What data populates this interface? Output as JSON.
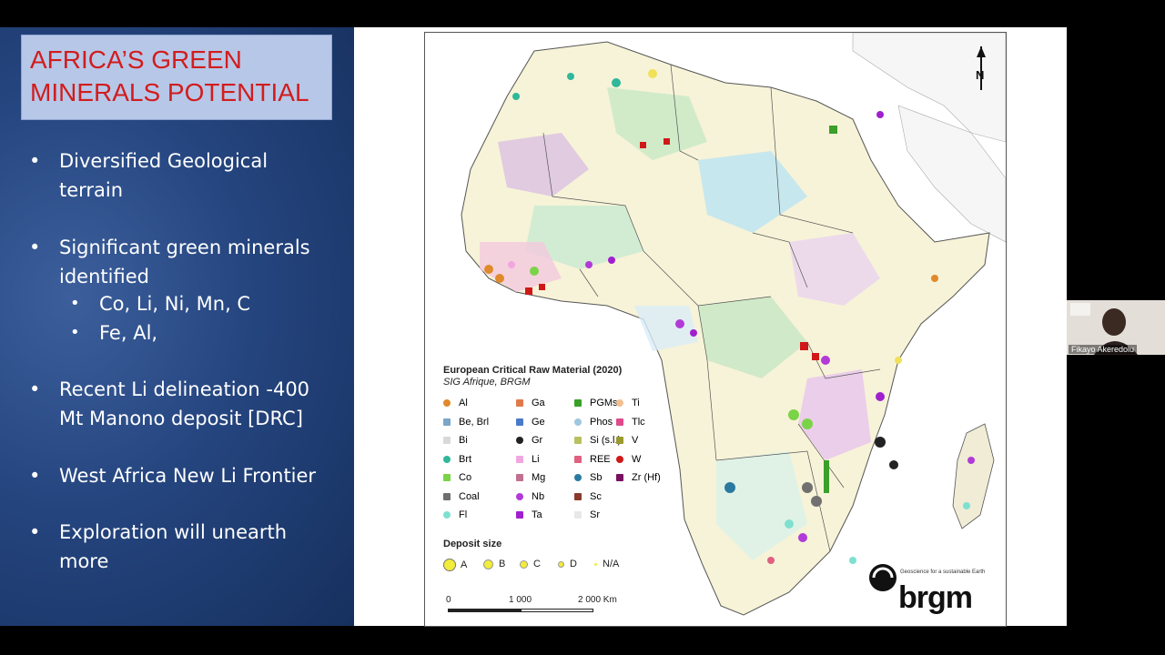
{
  "slide": {
    "title_line1": "AFRICA’S GREEN",
    "title_line2": "MINERALS POTENTIAL",
    "bullets": [
      {
        "line1": "Diversified Geological",
        "line2": "terrain"
      },
      {
        "line1": "Significant green minerals",
        "line2": "identified"
      },
      {
        "line1": "Recent Li delineation -400",
        "line2": "Mt Manono deposit [DRC]"
      },
      {
        "line1": "West Africa New Li Frontier",
        "line2": ""
      },
      {
        "line1": "Exploration will unearth",
        "line2": "more"
      }
    ],
    "sub_bullets": [
      "Co, Li, Ni, Mn, C",
      "Fe, Al,"
    ],
    "bullet_char": "•"
  },
  "map": {
    "legend_title": "European Critical Raw Material (2020)",
    "legend_subtitle": "SIG Afrique, BRGM",
    "legend_items": [
      {
        "label": "Al",
        "color": "#e08a2c"
      },
      {
        "label": "Be, Brl",
        "color": "#7aa6c9"
      },
      {
        "label": "Bi",
        "color": "#d8d8d8"
      },
      {
        "label": "Brt",
        "color": "#2fb89a"
      },
      {
        "label": "Co",
        "color": "#7bd348"
      },
      {
        "label": "Coal",
        "color": "#707070"
      },
      {
        "label": "Fl",
        "color": "#7ee0d0"
      },
      {
        "label": "Ga",
        "color": "#e07a4a"
      },
      {
        "label": "Ge",
        "color": "#4a7ac8"
      },
      {
        "label": "Gr",
        "color": "#222222"
      },
      {
        "label": "Li",
        "color": "#f2a6e0"
      },
      {
        "label": "Mg",
        "color": "#c07090"
      },
      {
        "label": "Nb",
        "color": "#b23ad8"
      },
      {
        "label": "Ta",
        "color": "#a020d0"
      },
      {
        "label": "PGMs",
        "color": "#3aa02a"
      },
      {
        "label": "Phos",
        "color": "#9ec8e0"
      },
      {
        "label": "Si (s.l.)",
        "color": "#b8c060"
      },
      {
        "label": "REE",
        "color": "#e06080"
      },
      {
        "label": "Sb",
        "color": "#2a7aa0"
      },
      {
        "label": "Sc",
        "color": "#8a3a2a"
      },
      {
        "label": "Sr",
        "color": "#e8e8e8"
      },
      {
        "label": "Ti",
        "color": "#f0c090"
      },
      {
        "label": "Tlc",
        "color": "#e04a8a"
      },
      {
        "label": "V",
        "color": "#9a9a30"
      },
      {
        "label": "W",
        "color": "#d01818"
      },
      {
        "label": "Zr (Hf)",
        "color": "#7a1060"
      }
    ],
    "deposit_size_title": "Deposit size",
    "deposit_sizes": [
      "A",
      "B",
      "C",
      "D",
      "N/A"
    ],
    "scale_labels": [
      "0",
      "1 000",
      "2 000 Km"
    ],
    "brand": "brgm",
    "brand_tagline": "Geoscience for a sustainable Earth",
    "north_label": "N"
  },
  "webcam": {
    "name": "Fikayo Akeredolu"
  }
}
